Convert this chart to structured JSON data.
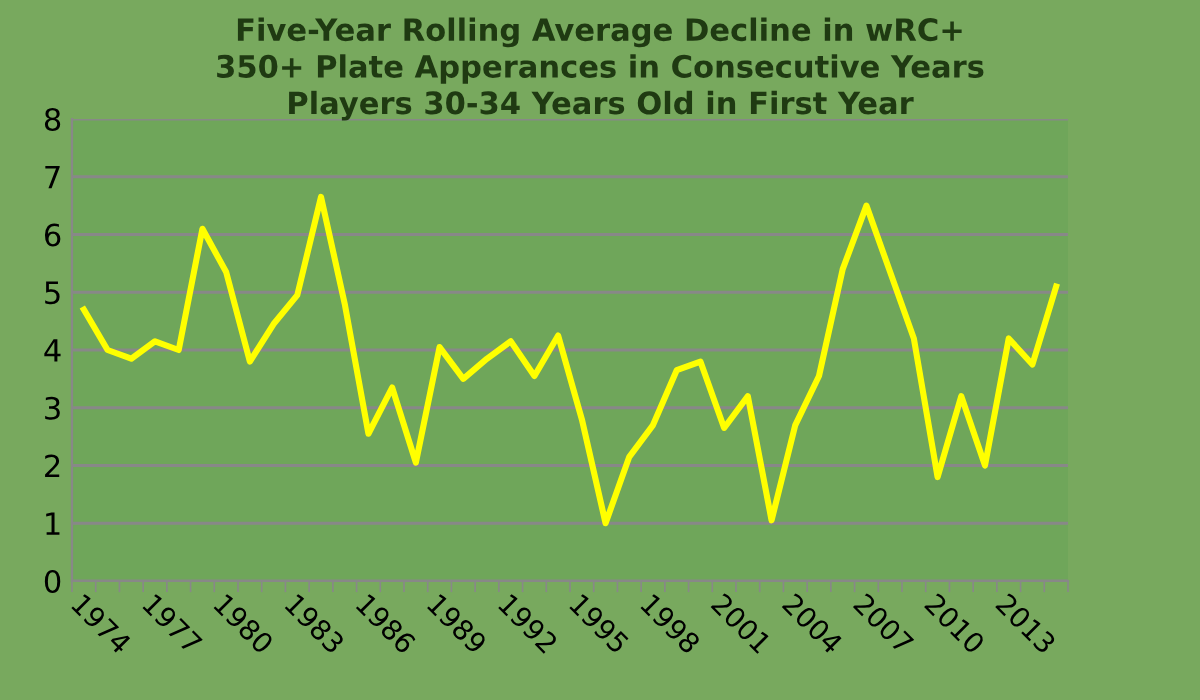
{
  "chart_data": {
    "type": "line",
    "title": "Five-Year Rolling Average Decline in wRC+\n350+ Plate Apperances in Consecutive Years\nPlayers 30-34 Years Old in First Year",
    "categories": [
      "1974",
      null,
      null,
      "1977",
      null,
      null,
      "1980",
      null,
      null,
      "1983",
      null,
      null,
      "1986",
      null,
      null,
      "1989",
      null,
      null,
      "1992",
      null,
      null,
      "1995",
      null,
      null,
      "1998",
      null,
      null,
      "2001",
      null,
      null,
      "2004",
      null,
      null,
      "2007",
      null,
      null,
      "2010",
      null,
      null,
      "2013",
      null,
      null
    ],
    "series": [
      {
        "color": "#ffff00",
        "values": [
          4.7,
          4.0,
          3.85,
          4.15,
          4.0,
          6.1,
          5.35,
          3.8,
          4.45,
          4.95,
          6.65,
          4.8,
          2.55,
          3.35,
          2.05,
          4.05,
          3.5,
          3.85,
          4.15,
          3.55,
          4.25,
          2.8,
          1.0,
          2.15,
          2.7,
          3.65,
          3.8,
          2.65,
          3.2,
          1.05,
          2.7,
          3.55,
          5.4,
          6.5,
          5.35,
          4.2,
          1.8,
          3.2,
          2.0,
          4.2,
          3.75,
          5.1
        ]
      }
    ],
    "ylim": [
      0,
      8
    ],
    "yticks": [
      0,
      1,
      2,
      3,
      4,
      5,
      6,
      7,
      8
    ],
    "grid": "y",
    "marker": "none",
    "line_style": "solid"
  }
}
